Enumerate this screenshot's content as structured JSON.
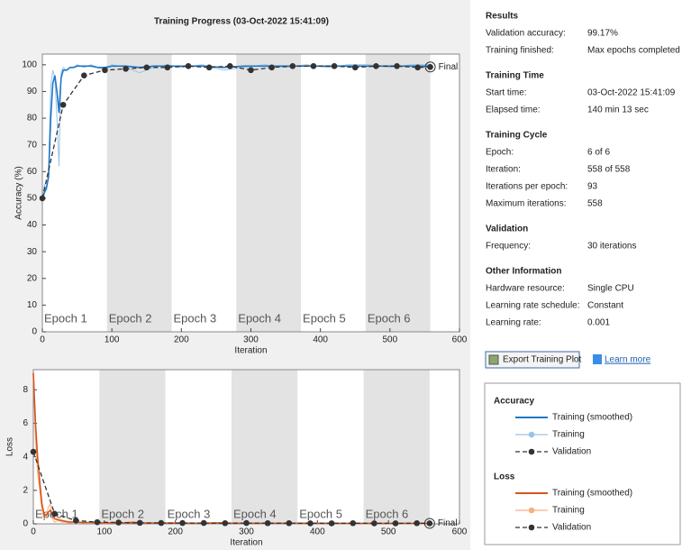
{
  "chart_data": [
    {
      "type": "line",
      "title": "Training Progress (03-Oct-2022 15:41:09)",
      "xlabel": "Iteration",
      "ylabel": "Accuracy (%)",
      "xlim": [
        0,
        600
      ],
      "xticks": [
        0,
        100,
        200,
        300,
        400,
        500,
        600
      ],
      "ylim": [
        0,
        104
      ],
      "yticks": [
        0,
        10,
        20,
        30,
        40,
        50,
        60,
        70,
        80,
        90,
        100
      ],
      "epoch_bounds": [
        0,
        93,
        186,
        279,
        372,
        465,
        558
      ],
      "epoch_labels": [
        "Epoch 1",
        "Epoch 2",
        "Epoch 3",
        "Epoch 4",
        "Epoch 5",
        "Epoch 6"
      ],
      "annotation": "Final",
      "legend_title": "Accuracy",
      "series": [
        {
          "name": "Training (smoothed)",
          "color": "#1f77c4",
          "style": "solid",
          "x": [
            0,
            3,
            6,
            9,
            12,
            15,
            18,
            21,
            24,
            27,
            30,
            35,
            40,
            45,
            50,
            60,
            70,
            80,
            90,
            100,
            120,
            140,
            160,
            180,
            200,
            230,
            260,
            290,
            320,
            350,
            380,
            410,
            440,
            470,
            500,
            530,
            558
          ],
          "values": [
            50,
            52,
            54,
            58,
            80,
            93,
            96,
            90,
            82,
            95,
            98,
            98,
            99,
            99,
            99.5,
            99.5,
            99.5,
            99,
            99,
            99.5,
            99.5,
            99,
            99.5,
            99.5,
            99.5,
            99.5,
            99,
            99.5,
            99.5,
            99.5,
            99.5,
            99.5,
            99.5,
            99.5,
            99.5,
            99.5,
            99.5
          ]
        },
        {
          "name": "Training",
          "color": "#9cc3e6",
          "style": "raw",
          "x": [
            0,
            3,
            6,
            9,
            12,
            15,
            18,
            21,
            24,
            27,
            30,
            35,
            40,
            45,
            50,
            60,
            70,
            80,
            90,
            100,
            120,
            140,
            160,
            180,
            200,
            230,
            260,
            290,
            320,
            350,
            380,
            410,
            440,
            470,
            500,
            530,
            558
          ],
          "values": [
            50,
            55,
            53,
            60,
            92,
            98,
            95,
            80,
            62,
            97,
            99,
            98,
            99,
            99,
            100,
            99,
            100,
            99,
            98,
            100,
            99,
            97,
            99,
            100,
            99,
            100,
            98,
            99,
            100,
            99,
            100,
            99,
            100,
            100,
            99,
            100,
            100
          ]
        },
        {
          "name": "Validation",
          "color": "#333333",
          "style": "dashed",
          "x": [
            0,
            30,
            60,
            90,
            120,
            150,
            180,
            210,
            240,
            270,
            300,
            330,
            360,
            390,
            420,
            450,
            480,
            510,
            540,
            558
          ],
          "values": [
            50,
            85,
            96,
            98,
            98.5,
            99,
            99,
            99.5,
            99,
            99.5,
            98,
            99,
            99.5,
            99.5,
            99.5,
            99,
            99.5,
            99.5,
            99,
            99.17
          ]
        }
      ]
    },
    {
      "type": "line",
      "xlabel": "Iteration",
      "ylabel": "Loss",
      "xlim": [
        0,
        600
      ],
      "xticks": [
        0,
        100,
        200,
        300,
        400,
        500,
        600
      ],
      "ylim": [
        0,
        9.2
      ],
      "yticks": [
        0,
        2,
        4,
        6,
        8
      ],
      "epoch_bounds": [
        0,
        93,
        186,
        279,
        372,
        465,
        558
      ],
      "epoch_labels": [
        "Epoch 1",
        "Epoch 2",
        "Epoch 3",
        "Epoch 4",
        "Epoch 5",
        "Epoch 6"
      ],
      "annotation": "Final",
      "legend_title": "Loss",
      "series": [
        {
          "name": "Training (smoothed)",
          "color": "#d95319",
          "style": "solid",
          "x": [
            0,
            3,
            6,
            9,
            12,
            15,
            18,
            21,
            24,
            27,
            30,
            35,
            40,
            45,
            50,
            60,
            70,
            80,
            90,
            100,
            120,
            140,
            160,
            180,
            200,
            230,
            260,
            290,
            320,
            350,
            380,
            410,
            440,
            470,
            500,
            530,
            558
          ],
          "values": [
            9,
            6,
            4,
            2.5,
            1.2,
            0.6,
            0.5,
            0.7,
            0.8,
            0.5,
            0.3,
            0.25,
            0.2,
            0.15,
            0.12,
            0.1,
            0.08,
            0.08,
            0.08,
            0.06,
            0.06,
            0.07,
            0.05,
            0.05,
            0.05,
            0.04,
            0.05,
            0.04,
            0.04,
            0.04,
            0.04,
            0.04,
            0.03,
            0.03,
            0.03,
            0.03,
            0.03
          ]
        },
        {
          "name": "Training",
          "color": "#f4b183",
          "style": "raw",
          "x": [
            0,
            3,
            6,
            9,
            12,
            15,
            18,
            21,
            24,
            27,
            30,
            35,
            40,
            45,
            50,
            60,
            70,
            80,
            90,
            100,
            120,
            140,
            160,
            180,
            200,
            230,
            260,
            290,
            320,
            350,
            380,
            410,
            440,
            470,
            500,
            530,
            558
          ],
          "values": [
            9,
            5,
            3,
            2,
            0.8,
            0.3,
            0.4,
            1,
            1.2,
            0.3,
            0.1,
            0.2,
            0.1,
            0.1,
            0.05,
            0.1,
            0.05,
            0.1,
            0.1,
            0.02,
            0.05,
            0.15,
            0.03,
            0.02,
            0.05,
            0.02,
            0.08,
            0.03,
            0.02,
            0.03,
            0.02,
            0.03,
            0.02,
            0.02,
            0.03,
            0.02,
            0.02
          ]
        },
        {
          "name": "Validation",
          "color": "#333333",
          "style": "dashed",
          "x": [
            0,
            30,
            60,
            90,
            120,
            150,
            180,
            210,
            240,
            270,
            300,
            330,
            360,
            390,
            420,
            450,
            480,
            510,
            540,
            558
          ],
          "values": [
            4.3,
            0.6,
            0.2,
            0.1,
            0.08,
            0.06,
            0.05,
            0.05,
            0.05,
            0.04,
            0.05,
            0.04,
            0.04,
            0.03,
            0.03,
            0.04,
            0.03,
            0.03,
            0.04,
            0.03
          ]
        }
      ]
    }
  ],
  "info": {
    "sections": [
      {
        "title": "Results",
        "rows": [
          [
            "Validation accuracy:",
            "99.17%"
          ],
          [
            "Training finished:",
            "Max epochs completed"
          ]
        ]
      },
      {
        "title": "Training Time",
        "rows": [
          [
            "Start time:",
            "03-Oct-2022 15:41:09"
          ],
          [
            "Elapsed time:",
            "140 min 13 sec"
          ]
        ]
      },
      {
        "title": "Training Cycle",
        "rows": [
          [
            "Epoch:",
            "6 of 6"
          ],
          [
            "Iteration:",
            "558 of 558"
          ],
          [
            "Iterations per epoch:",
            "93"
          ],
          [
            "Maximum iterations:",
            "558"
          ]
        ]
      },
      {
        "title": "Validation",
        "rows": [
          [
            "Frequency:",
            "30 iterations"
          ]
        ]
      },
      {
        "title": "Other Information",
        "rows": [
          [
            "Hardware resource:",
            "Single CPU"
          ],
          [
            "Learning rate schedule:",
            "Constant"
          ],
          [
            "Learning rate:",
            "0.001"
          ]
        ]
      }
    ]
  },
  "buttons": {
    "export": "Export Training Plot",
    "learn_more": "Learn more"
  }
}
